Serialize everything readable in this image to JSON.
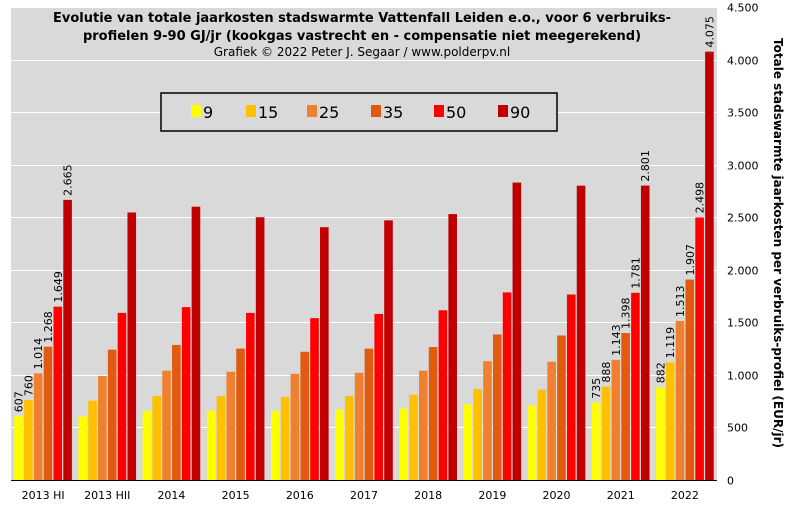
{
  "chart_data": {
    "type": "bar",
    "title_line1": "Evolutie van totale jaarkosten stadswarmte Vattenfall Leiden e.o., voor 6 verbruiks-",
    "title_line2": "profielen 9-90 GJ/jr (kookgas vastrecht en - compensatie niet meegerekend)",
    "subtitle": "Grafiek  © 2022 Peter J. Segaar / www.polderpv.nl",
    "xlabel": "",
    "ylabel": "Totale stadswarmte jaarkosten per verbruiks-profiel (EUR/jr)",
    "ylim": [
      0,
      4500
    ],
    "yticks": [
      0,
      500,
      1000,
      1500,
      2000,
      2500,
      3000,
      3500,
      4000,
      4500
    ],
    "ytick_labels": [
      "0",
      "500",
      "1.000",
      "1.500",
      "2.000",
      "2.500",
      "3.000",
      "3.500",
      "4.000",
      "4.500"
    ],
    "grid": true,
    "legend_position": "top-left",
    "categories": [
      "2013 HI",
      "2013 HII",
      "2014",
      "2015",
      "2016",
      "2017",
      "2018",
      "2019",
      "2020",
      "2021",
      "2022"
    ],
    "series": [
      {
        "name": "9",
        "color": "#ffff00",
        "values": [
          607,
          605,
          655,
          660,
          655,
          670,
          680,
          720,
          710,
          735,
          882
        ]
      },
      {
        "name": "15",
        "color": "#ffc000",
        "values": [
          760,
          755,
          800,
          800,
          790,
          800,
          810,
          865,
          860,
          888,
          1119
        ]
      },
      {
        "name": "25",
        "color": "#f08030",
        "values": [
          1014,
          990,
          1040,
          1030,
          1010,
          1020,
          1040,
          1130,
          1125,
          1143,
          1513
        ]
      },
      {
        "name": "35",
        "color": "#e05a10",
        "values": [
          1268,
          1240,
          1285,
          1250,
          1220,
          1250,
          1265,
          1385,
          1375,
          1398,
          1907
        ]
      },
      {
        "name": "50",
        "color": "#ff0000",
        "values": [
          1649,
          1590,
          1645,
          1590,
          1540,
          1580,
          1615,
          1785,
          1765,
          1781,
          2498
        ]
      },
      {
        "name": "90",
        "color": "#c00000",
        "values": [
          2665,
          2545,
          2600,
          2500,
          2405,
          2470,
          2530,
          2830,
          2800,
          2801,
          4075
        ]
      }
    ],
    "labeled_categories": [
      0,
      9,
      10
    ],
    "data_labels": {
      "0": [
        "607",
        "760",
        "1.014",
        "1.268",
        "1.649",
        "2.665"
      ],
      "9": [
        "735",
        "888",
        "1.143",
        "1.398",
        "1.781",
        "2.801"
      ],
      "10": [
        "882",
        "1.119",
        "1.513",
        "1.907",
        "2.498",
        "4.075"
      ]
    },
    "plot_background": "#d9d9d9",
    "grid_color": "#ffffff"
  }
}
